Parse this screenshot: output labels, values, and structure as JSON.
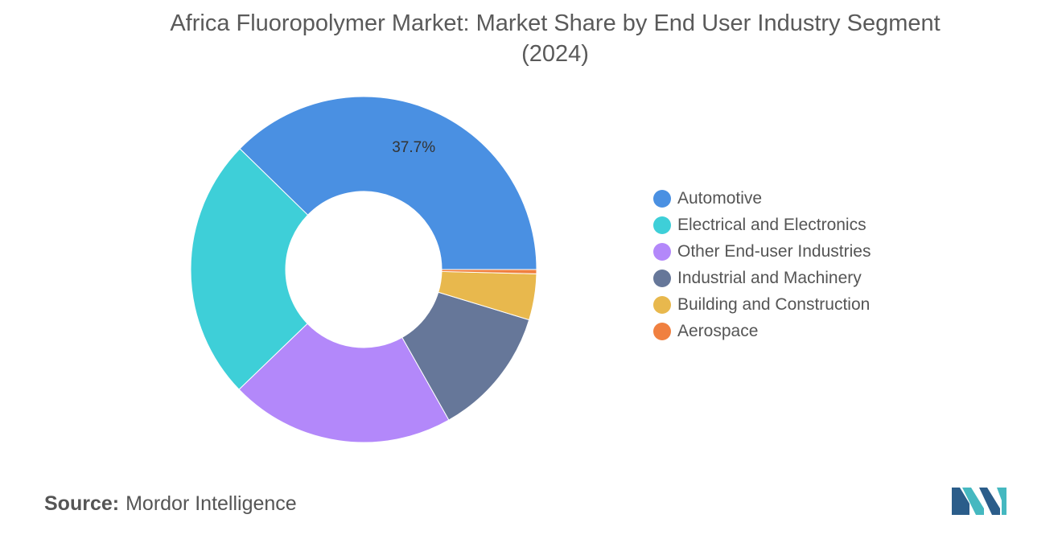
{
  "chart_data": {
    "type": "pie",
    "donut": true,
    "title": "Africa Fluoropolymer Market: Market Share by End User Industry Segment",
    "subtitle": "(2024)",
    "legend_position": "right",
    "slices": [
      {
        "name": "Automotive",
        "value": 37.7,
        "color": "#4a90e2",
        "label": "37.7%"
      },
      {
        "name": "Electrical and Electronics",
        "value": 24.5,
        "color": "#3ecfd8"
      },
      {
        "name": "Other End-user Industries",
        "value": 21.0,
        "color": "#b388fa"
      },
      {
        "name": "Industrial and Machinery",
        "value": 12.1,
        "color": "#667799"
      },
      {
        "name": "Building and Construction",
        "value": 4.3,
        "color": "#e8b84d"
      },
      {
        "name": "Aerospace",
        "value": 0.4,
        "color": "#f08040"
      }
    ]
  },
  "source": {
    "label": "Source:",
    "text": "Mordor Intelligence"
  },
  "logo": {
    "icon": "mordor-intelligence-logo",
    "colors": [
      "#2b5d8a",
      "#45b8c0"
    ]
  }
}
